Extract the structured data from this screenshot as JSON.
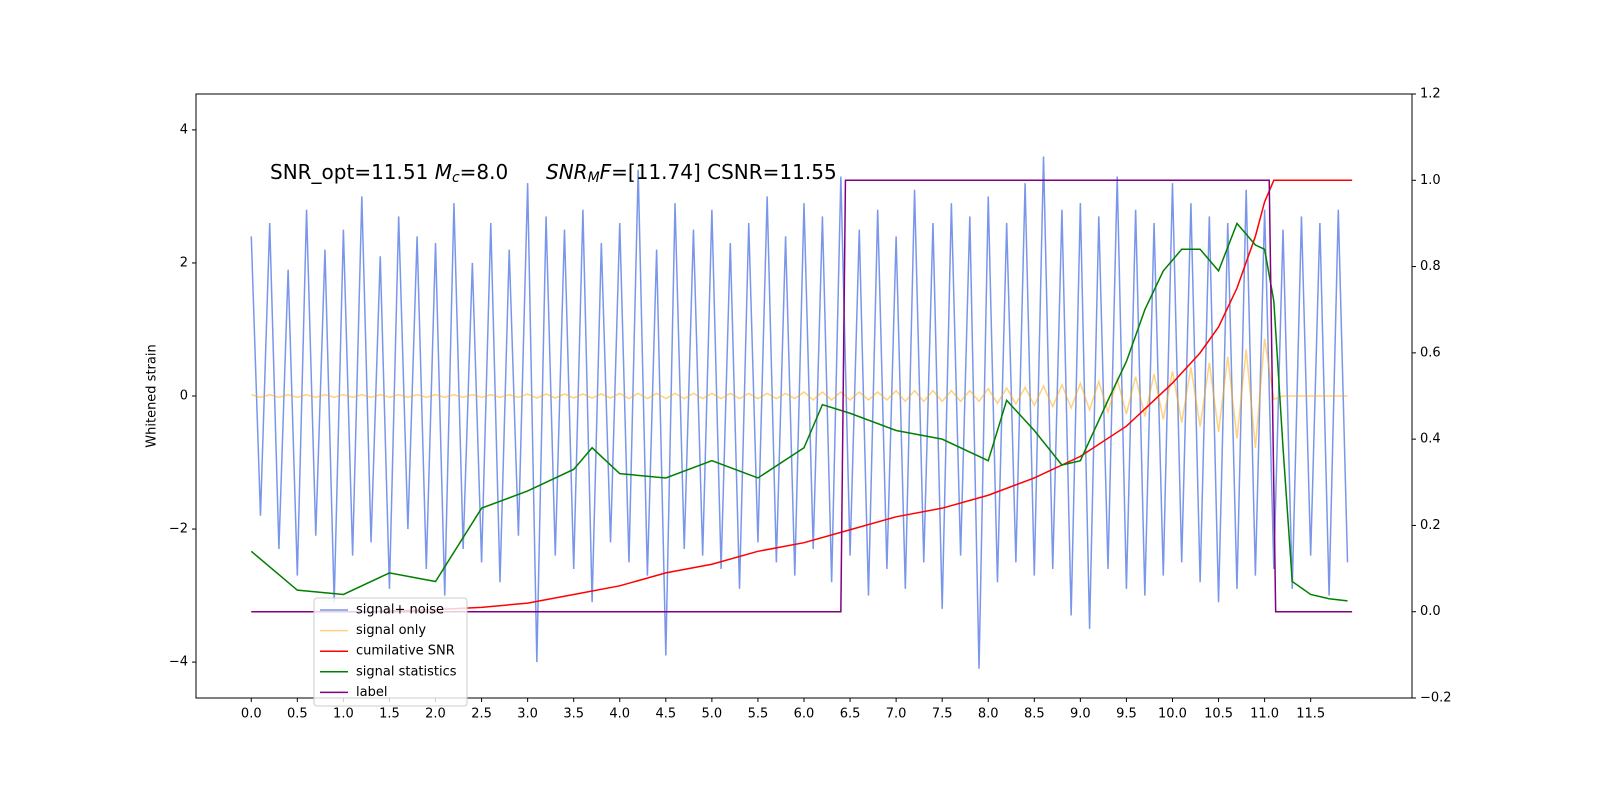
{
  "chart_data": {
    "type": "line",
    "ylabel": "Whitened strain",
    "annotation": [
      "SNR_opt=11.51 ",
      "M",
      "c",
      "=8.0",
      "SNR",
      "M",
      "F",
      "=[11.74] CSNR=11.55"
    ],
    "x": [
      0,
      0.1,
      0.2,
      0.3,
      0.4,
      0.5,
      0.6,
      0.7,
      0.8,
      0.9,
      1,
      1.1,
      1.2,
      1.3,
      1.4,
      1.5,
      1.6,
      1.7,
      1.8,
      1.9,
      2,
      2.1,
      2.2,
      2.3,
      2.4,
      2.5,
      2.6,
      2.7,
      2.8,
      2.9,
      3,
      3.1,
      3.2,
      3.3,
      3.4,
      3.5,
      3.6,
      3.7,
      3.8,
      3.9,
      4,
      4.1,
      4.2,
      4.3,
      4.4,
      4.5,
      4.6,
      4.7,
      4.8,
      4.9,
      5,
      5.1,
      5.2,
      5.3,
      5.4,
      5.5,
      5.6,
      5.7,
      5.8,
      5.9,
      6,
      6.1,
      6.2,
      6.3,
      6.4,
      6.5,
      6.6,
      6.7,
      6.8,
      6.9,
      7,
      7.1,
      7.2,
      7.3,
      7.4,
      7.5,
      7.6,
      7.7,
      7.8,
      7.9,
      8,
      8.1,
      8.2,
      8.3,
      8.4,
      8.5,
      8.6,
      8.7,
      8.8,
      8.9,
      9,
      9.1,
      9.2,
      9.3,
      9.4,
      9.5,
      9.6,
      9.7,
      9.8,
      9.9,
      10,
      10.1,
      10.2,
      10.3,
      10.4,
      10.5,
      10.6,
      10.7,
      10.8,
      10.9,
      11,
      11.1,
      11.2,
      11.3,
      11.4,
      11.5,
      11.6,
      11.7,
      11.8,
      11.9
    ],
    "series": [
      {
        "name": "signal+ noise",
        "color": "#4169e1",
        "opacity": 0.7,
        "axis": "y",
        "values": [
          2.4,
          -1.8,
          2.6,
          -2.3,
          1.9,
          -2.7,
          2.8,
          -2.1,
          2.2,
          -3.1,
          2.5,
          -2.4,
          3.0,
          -2.2,
          2.1,
          -2.9,
          2.7,
          -2.0,
          2.4,
          -2.6,
          2.3,
          -3.0,
          2.9,
          -2.3,
          2.0,
          -2.5,
          2.6,
          -2.8,
          2.2,
          -2.1,
          3.2,
          -4.0,
          2.7,
          -2.4,
          2.5,
          -2.6,
          2.8,
          -3.1,
          2.3,
          -2.2,
          2.6,
          -2.5,
          3.4,
          -2.7,
          2.2,
          -3.9,
          2.9,
          -2.3,
          2.5,
          -2.4,
          2.8,
          -2.6,
          2.3,
          -2.9,
          2.6,
          -2.2,
          3.0,
          -2.5,
          2.4,
          -2.7,
          2.9,
          -2.3,
          2.7,
          -2.8,
          3.3,
          -2.4,
          2.5,
          -3.0,
          2.8,
          -2.6,
          2.4,
          -2.9,
          3.1,
          -2.5,
          2.6,
          -3.2,
          2.9,
          -2.4,
          2.7,
          -4.1,
          3.0,
          -2.8,
          2.6,
          -2.5,
          3.2,
          -2.7,
          3.6,
          -2.6,
          2.8,
          -3.3,
          2.9,
          -3.5,
          2.7,
          -2.6,
          3.3,
          -2.9,
          2.8,
          -3.0,
          2.6,
          -2.7,
          3.2,
          -2.5,
          2.9,
          -2.8,
          2.7,
          -3.1,
          2.6,
          -2.9,
          3.1,
          -2.7,
          2.8,
          -2.6,
          2.5,
          -2.9,
          2.7,
          -2.4,
          2.6,
          -3.0,
          2.8,
          -2.5
        ]
      },
      {
        "name": "signal only",
        "color": "#ffa500",
        "opacity": 0.5,
        "axis": "y",
        "values": [
          0.02,
          -0.02,
          0.02,
          -0.02,
          0.02,
          -0.02,
          0.02,
          -0.02,
          0.02,
          -0.02,
          0.02,
          -0.02,
          0.02,
          -0.02,
          0.02,
          -0.02,
          0.02,
          -0.02,
          0.02,
          -0.02,
          0.02,
          -0.02,
          0.02,
          -0.02,
          0.02,
          -0.02,
          0.02,
          -0.02,
          0.02,
          -0.02,
          0.03,
          -0.03,
          0.03,
          -0.03,
          0.03,
          -0.03,
          0.03,
          -0.03,
          0.03,
          -0.03,
          0.04,
          -0.04,
          0.04,
          -0.04,
          0.04,
          -0.04,
          0.04,
          -0.04,
          0.04,
          -0.04,
          0.04,
          -0.04,
          0.04,
          -0.04,
          0.04,
          -0.04,
          0.04,
          -0.04,
          0.04,
          -0.04,
          0.06,
          -0.06,
          0.06,
          -0.06,
          0.06,
          -0.06,
          0.06,
          -0.06,
          0.06,
          -0.06,
          0.08,
          -0.08,
          0.08,
          -0.08,
          0.08,
          -0.08,
          0.08,
          -0.08,
          0.08,
          -0.08,
          0.11,
          -0.11,
          0.12,
          -0.12,
          0.13,
          -0.14,
          0.15,
          -0.16,
          0.17,
          -0.18,
          0.19,
          -0.21,
          0.22,
          -0.24,
          0.25,
          -0.27,
          0.29,
          -0.31,
          0.33,
          -0.35,
          0.37,
          -0.4,
          0.43,
          -0.46,
          0.5,
          -0.54,
          0.59,
          -0.64,
          0.7,
          -0.78,
          0.86,
          -0.05,
          0,
          0,
          0,
          0,
          0,
          0,
          0,
          0
        ]
      },
      {
        "name": "cumilative SNR",
        "color": "#ff0000",
        "axis": "y2",
        "x": [
          1.3,
          2,
          2.5,
          3,
          3.5,
          4,
          4.5,
          5,
          5.5,
          6,
          6.5,
          7,
          7.5,
          8,
          8.5,
          9,
          9.5,
          10,
          10.3,
          10.5,
          10.7,
          10.9,
          11.0,
          11.1,
          11.95
        ],
        "values": [
          0,
          0.005,
          0.01,
          0.02,
          0.04,
          0.06,
          0.09,
          0.11,
          0.14,
          0.16,
          0.19,
          0.22,
          0.24,
          0.27,
          0.31,
          0.36,
          0.43,
          0.53,
          0.6,
          0.66,
          0.75,
          0.87,
          0.95,
          1.0,
          1.0
        ]
      },
      {
        "name": "signal statistics",
        "color": "#008000",
        "axis": "y2",
        "x": [
          0,
          0.5,
          1.0,
          1.5,
          2.0,
          2.5,
          3,
          3.5,
          3.7,
          4,
          4.5,
          5,
          5.5,
          6,
          6.2,
          6.5,
          7,
          7.5,
          8,
          8.2,
          8.5,
          8.8,
          9.0,
          9.3,
          9.5,
          9.7,
          9.9,
          10.1,
          10.3,
          10.5,
          10.7,
          10.9,
          11.0,
          11.1,
          11.2,
          11.3,
          11.5,
          11.7,
          11.9
        ],
        "values": [
          0.14,
          0.05,
          0.04,
          0.09,
          0.07,
          0.24,
          0.28,
          0.33,
          0.38,
          0.32,
          0.31,
          0.35,
          0.31,
          0.38,
          0.48,
          0.46,
          0.42,
          0.4,
          0.35,
          0.49,
          0.42,
          0.34,
          0.35,
          0.49,
          0.58,
          0.7,
          0.79,
          0.84,
          0.84,
          0.79,
          0.9,
          0.85,
          0.84,
          0.72,
          0.38,
          0.07,
          0.04,
          0.03,
          0.025
        ]
      },
      {
        "name": "label",
        "color": "#800080",
        "axis": "y2",
        "x": [
          0,
          6.4,
          6.45,
          11.05,
          11.12,
          11.95
        ],
        "values": [
          0,
          0,
          1,
          1,
          0,
          0
        ]
      }
    ],
    "xlim": [
      -0.6,
      12.6
    ],
    "xticks": [
      {
        "value": 0,
        "label": "0.0"
      },
      {
        "value": 0.5,
        "label": "0.5"
      },
      {
        "value": 1,
        "label": "1.0"
      },
      {
        "value": 1.5,
        "label": "1.5"
      },
      {
        "value": 2,
        "label": "2.0"
      },
      {
        "value": 2.5,
        "label": "2.5"
      },
      {
        "value": 3,
        "label": "3.0"
      },
      {
        "value": 3.5,
        "label": "3.5"
      },
      {
        "value": 4,
        "label": "4.0"
      },
      {
        "value": 4.5,
        "label": "4.5"
      },
      {
        "value": 5,
        "label": "5.0"
      },
      {
        "value": 5.5,
        "label": "5.5"
      },
      {
        "value": 6,
        "label": "6.0"
      },
      {
        "value": 6.5,
        "label": "6.5"
      },
      {
        "value": 7,
        "label": "7.0"
      },
      {
        "value": 7.5,
        "label": "7.5"
      },
      {
        "value": 8,
        "label": "8.0"
      },
      {
        "value": 8.5,
        "label": "8.5"
      },
      {
        "value": 9,
        "label": "9.0"
      },
      {
        "value": 9.5,
        "label": "9.5"
      },
      {
        "value": 10,
        "label": "10.0"
      },
      {
        "value": 10.5,
        "label": "10.5"
      },
      {
        "value": 11,
        "label": "11.0"
      },
      {
        "value": 11.5,
        "label": "11.5"
      }
    ],
    "ylim": [
      -4.54,
      4.54
    ],
    "yticks": [
      {
        "value": -4,
        "label": "−4"
      },
      {
        "value": -2,
        "label": "−2"
      },
      0,
      2,
      4
    ],
    "y2lim": [
      -0.2,
      1.2
    ],
    "y2ticks": [
      {
        "value": -0.2,
        "label": "−0.2"
      },
      {
        "value": 0,
        "label": "0.0"
      },
      0.2,
      0.4,
      0.6,
      0.8,
      {
        "value": 1,
        "label": "1.0"
      },
      {
        "value": 1.2,
        "label": "1.2"
      }
    ],
    "legend": "lower left"
  }
}
